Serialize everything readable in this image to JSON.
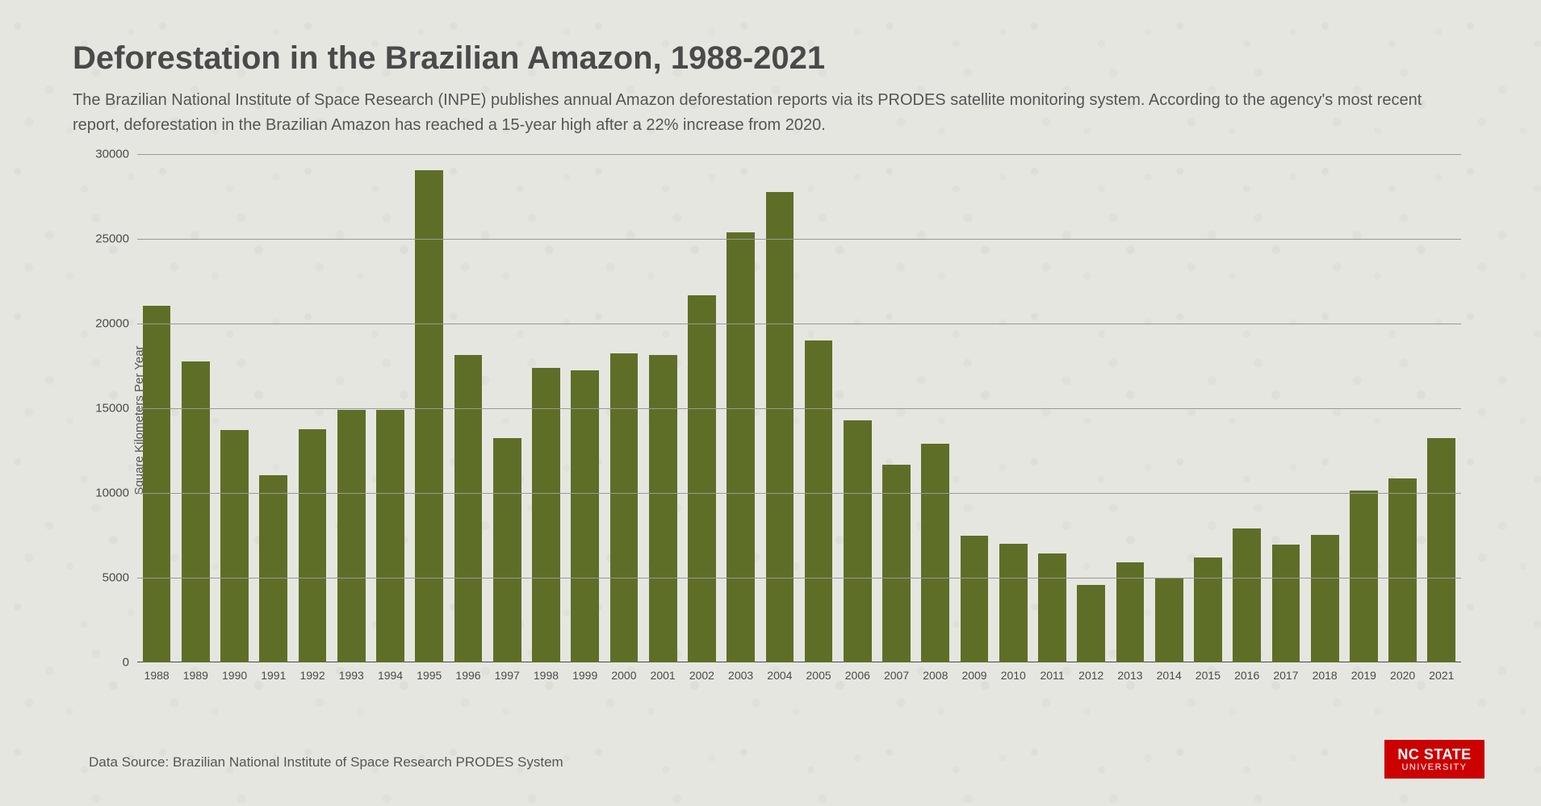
{
  "title": "Deforestation in the Brazilian Amazon, 1988-2021",
  "subtitle": "The Brazilian National Institute of Space Research (INPE) publishes annual Amazon deforestation reports via its PRODES satellite monitoring system. According to the agency's most recent report, deforestation in the Brazilian Amazon has reached a 15-year high after a 22% increase from 2020.",
  "source_note": "Data Source: Brazilian National Institute of Space Research PRODES System",
  "logo": {
    "line1": "NC STATE",
    "line2": "UNIVERSITY",
    "bg": "#cc0000",
    "fg": "#ffffff"
  },
  "chart": {
    "type": "bar",
    "ylabel": "Square Kilometers Per Year",
    "ylim": [
      0,
      30000
    ],
    "ytick_step": 5000,
    "yticks": [
      0,
      5000,
      10000,
      15000,
      20000,
      25000,
      30000
    ],
    "bar_color": "#5f6e27",
    "grid_color": "#9a9a95",
    "axis_color": "#4a4a4a",
    "background_color": "#e6e6e1",
    "bar_width": 0.72,
    "label_fontsize": 15,
    "tick_fontsize": 14,
    "title_fontsize": 40,
    "title_color": "#4a4a4a",
    "subtitle_fontsize": 20,
    "subtitle_color": "#555555",
    "categories": [
      "1988",
      "1989",
      "1990",
      "1991",
      "1992",
      "1993",
      "1994",
      "1995",
      "1996",
      "1997",
      "1998",
      "1999",
      "2000",
      "2001",
      "2002",
      "2003",
      "2004",
      "2005",
      "2006",
      "2007",
      "2008",
      "2009",
      "2010",
      "2011",
      "2012",
      "2013",
      "2014",
      "2015",
      "2016",
      "2017",
      "2018",
      "2019",
      "2020",
      "2021"
    ],
    "values": [
      21050,
      17770,
      13730,
      11030,
      13786,
      14896,
      14896,
      29059,
      18161,
      13227,
      17383,
      17259,
      18226,
      18165,
      21651,
      25396,
      27772,
      19014,
      14286,
      11651,
      12911,
      7464,
      7000,
      6418,
      4571,
      5891,
      5012,
      6207,
      7893,
      6947,
      7536,
      10129,
      10851,
      13235
    ]
  }
}
